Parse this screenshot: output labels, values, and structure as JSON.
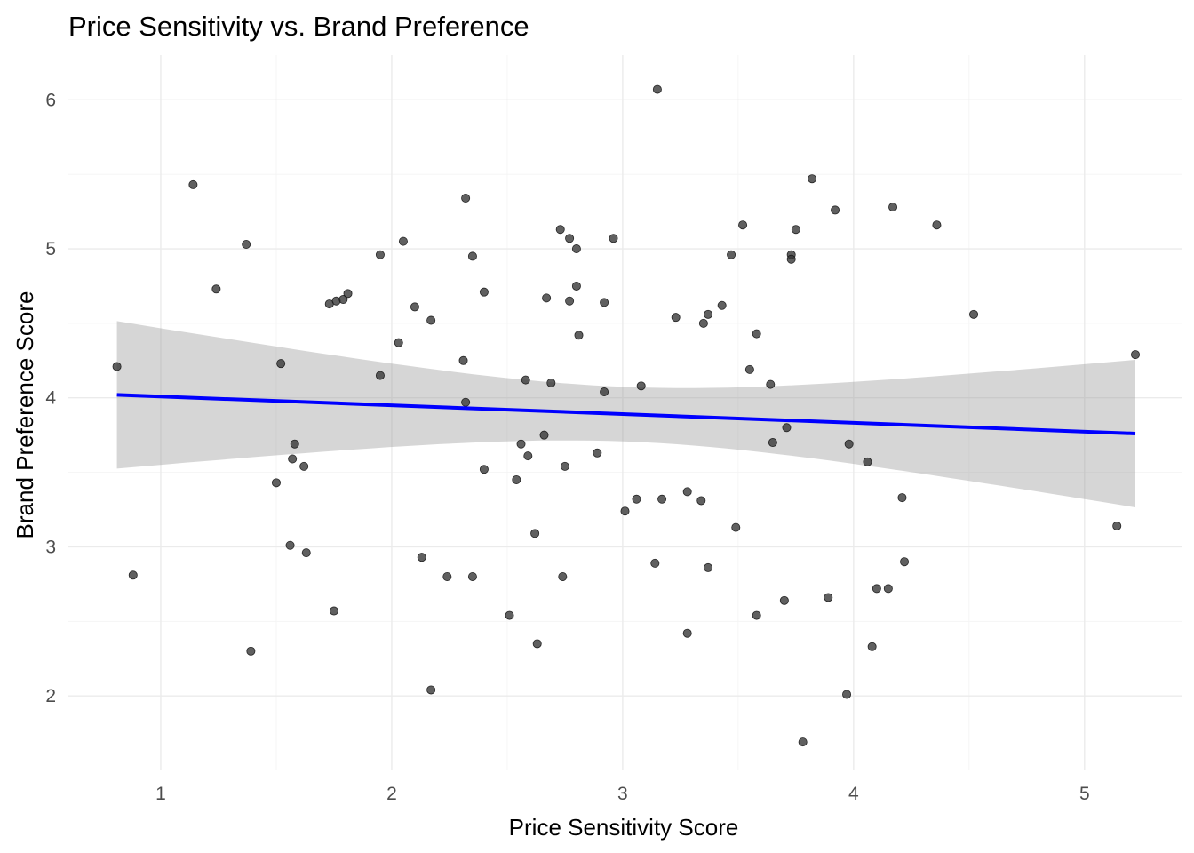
{
  "chart_data": {
    "type": "scatter",
    "title": "Price Sensitivity vs. Brand Preference",
    "xlabel": "Price Sensitivity Score",
    "ylabel": "Brand Preference Score",
    "xlim": [
      0.6,
      5.42
    ],
    "ylim": [
      1.5,
      6.3
    ],
    "x_ticks": [
      1,
      2,
      3,
      4,
      5
    ],
    "y_ticks": [
      2,
      3,
      4,
      5,
      6
    ],
    "grid": true,
    "colors": {
      "points": "#333333",
      "trend_line": "#0000ff",
      "confidence_band": "#999999",
      "grid": "#ebebeb"
    },
    "trend": {
      "method": "linear",
      "x": [
        0.81,
        5.22
      ],
      "y": [
        4.02,
        3.76
      ],
      "ci_lower": [
        3.56,
        3.24
      ],
      "ci_upper": [
        4.49,
        4.29
      ]
    },
    "points": [
      {
        "x": 0.81,
        "y": 4.21
      },
      {
        "x": 0.88,
        "y": 2.81
      },
      {
        "x": 1.14,
        "y": 5.43
      },
      {
        "x": 1.24,
        "y": 4.73
      },
      {
        "x": 1.37,
        "y": 5.03
      },
      {
        "x": 1.39,
        "y": 2.3
      },
      {
        "x": 1.5,
        "y": 3.43
      },
      {
        "x": 1.52,
        "y": 4.23
      },
      {
        "x": 1.56,
        "y": 3.01
      },
      {
        "x": 1.57,
        "y": 3.59
      },
      {
        "x": 1.58,
        "y": 3.69
      },
      {
        "x": 1.62,
        "y": 3.54
      },
      {
        "x": 1.63,
        "y": 2.96
      },
      {
        "x": 1.73,
        "y": 4.63
      },
      {
        "x": 1.75,
        "y": 2.57
      },
      {
        "x": 1.76,
        "y": 4.65
      },
      {
        "x": 1.79,
        "y": 4.66
      },
      {
        "x": 1.81,
        "y": 4.7
      },
      {
        "x": 1.95,
        "y": 4.96
      },
      {
        "x": 1.95,
        "y": 4.15
      },
      {
        "x": 2.03,
        "y": 4.37
      },
      {
        "x": 2.05,
        "y": 5.05
      },
      {
        "x": 2.1,
        "y": 4.61
      },
      {
        "x": 2.13,
        "y": 2.93
      },
      {
        "x": 2.17,
        "y": 4.52
      },
      {
        "x": 2.17,
        "y": 2.04
      },
      {
        "x": 2.24,
        "y": 2.8
      },
      {
        "x": 2.31,
        "y": 4.25
      },
      {
        "x": 2.32,
        "y": 5.34
      },
      {
        "x": 2.32,
        "y": 3.97
      },
      {
        "x": 2.35,
        "y": 4.95
      },
      {
        "x": 2.35,
        "y": 2.8
      },
      {
        "x": 2.4,
        "y": 4.71
      },
      {
        "x": 2.4,
        "y": 3.52
      },
      {
        "x": 2.51,
        "y": 2.54
      },
      {
        "x": 2.54,
        "y": 3.45
      },
      {
        "x": 2.56,
        "y": 3.69
      },
      {
        "x": 2.58,
        "y": 4.12
      },
      {
        "x": 2.59,
        "y": 3.61
      },
      {
        "x": 2.62,
        "y": 3.09
      },
      {
        "x": 2.63,
        "y": 2.35
      },
      {
        "x": 2.66,
        "y": 3.75
      },
      {
        "x": 2.67,
        "y": 4.67
      },
      {
        "x": 2.69,
        "y": 4.1
      },
      {
        "x": 2.73,
        "y": 5.13
      },
      {
        "x": 2.74,
        "y": 2.8
      },
      {
        "x": 2.75,
        "y": 3.54
      },
      {
        "x": 2.77,
        "y": 4.65
      },
      {
        "x": 2.77,
        "y": 5.07
      },
      {
        "x": 2.8,
        "y": 4.75
      },
      {
        "x": 2.8,
        "y": 5.0
      },
      {
        "x": 2.81,
        "y": 4.42
      },
      {
        "x": 2.89,
        "y": 3.63
      },
      {
        "x": 2.92,
        "y": 4.64
      },
      {
        "x": 2.92,
        "y": 4.04
      },
      {
        "x": 2.96,
        "y": 5.07
      },
      {
        "x": 3.01,
        "y": 3.24
      },
      {
        "x": 3.06,
        "y": 3.32
      },
      {
        "x": 3.08,
        "y": 4.08
      },
      {
        "x": 3.14,
        "y": 2.89
      },
      {
        "x": 3.15,
        "y": 6.07
      },
      {
        "x": 3.17,
        "y": 3.32
      },
      {
        "x": 3.23,
        "y": 4.54
      },
      {
        "x": 3.28,
        "y": 3.37
      },
      {
        "x": 3.28,
        "y": 2.42
      },
      {
        "x": 3.34,
        "y": 3.31
      },
      {
        "x": 3.35,
        "y": 4.5
      },
      {
        "x": 3.37,
        "y": 4.56
      },
      {
        "x": 3.37,
        "y": 2.86
      },
      {
        "x": 3.43,
        "y": 4.62
      },
      {
        "x": 3.47,
        "y": 4.96
      },
      {
        "x": 3.49,
        "y": 3.13
      },
      {
        "x": 3.52,
        "y": 5.16
      },
      {
        "x": 3.55,
        "y": 4.19
      },
      {
        "x": 3.58,
        "y": 4.43
      },
      {
        "x": 3.58,
        "y": 2.54
      },
      {
        "x": 3.64,
        "y": 4.09
      },
      {
        "x": 3.65,
        "y": 3.7
      },
      {
        "x": 3.7,
        "y": 2.64
      },
      {
        "x": 3.71,
        "y": 3.8
      },
      {
        "x": 3.73,
        "y": 4.96
      },
      {
        "x": 3.73,
        "y": 4.93
      },
      {
        "x": 3.75,
        "y": 5.13
      },
      {
        "x": 3.78,
        "y": 1.69
      },
      {
        "x": 3.82,
        "y": 5.47
      },
      {
        "x": 3.89,
        "y": 2.66
      },
      {
        "x": 3.92,
        "y": 5.26
      },
      {
        "x": 3.97,
        "y": 2.01
      },
      {
        "x": 3.98,
        "y": 3.69
      },
      {
        "x": 4.06,
        "y": 3.57
      },
      {
        "x": 4.08,
        "y": 2.33
      },
      {
        "x": 4.1,
        "y": 2.72
      },
      {
        "x": 4.15,
        "y": 2.72
      },
      {
        "x": 4.17,
        "y": 5.28
      },
      {
        "x": 4.21,
        "y": 3.33
      },
      {
        "x": 4.22,
        "y": 2.9
      },
      {
        "x": 4.36,
        "y": 5.16
      },
      {
        "x": 4.52,
        "y": 4.56
      },
      {
        "x": 5.14,
        "y": 3.14
      },
      {
        "x": 5.22,
        "y": 4.29
      }
    ]
  }
}
